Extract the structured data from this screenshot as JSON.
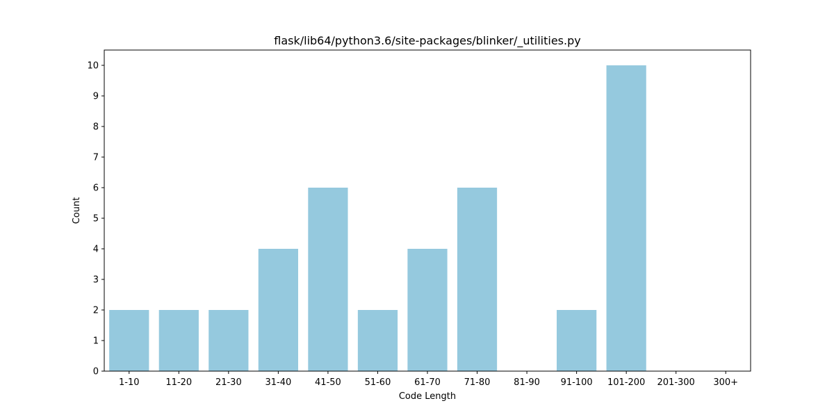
{
  "chart_data": {
    "type": "bar",
    "title": "flask/lib64/python3.6/site-packages/blinker/_utilities.py",
    "xlabel": "Code Length",
    "ylabel": "Count",
    "categories": [
      "1-10",
      "11-20",
      "21-30",
      "31-40",
      "41-50",
      "51-60",
      "61-70",
      "71-80",
      "81-90",
      "91-100",
      "101-200",
      "201-300",
      "300+"
    ],
    "values": [
      2,
      2,
      2,
      4,
      6,
      2,
      4,
      6,
      0,
      2,
      10,
      0,
      0
    ],
    "ylim": [
      0,
      10.5
    ],
    "yticks": [
      0,
      1,
      2,
      3,
      4,
      5,
      6,
      7,
      8,
      9,
      10
    ],
    "bar_color": "#95c9de",
    "grid": false,
    "legend": "none"
  }
}
